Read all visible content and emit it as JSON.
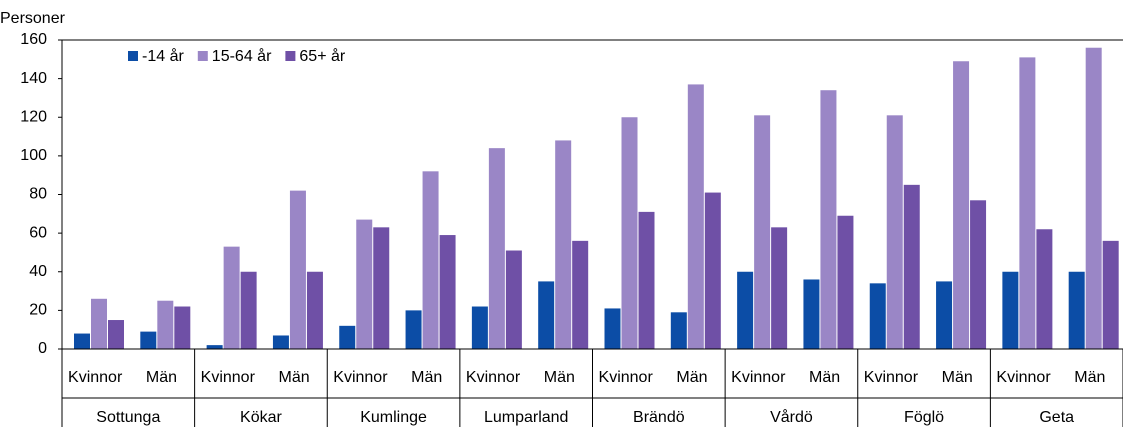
{
  "chart_data": {
    "type": "bar",
    "y_label": "Personer",
    "categories": [
      "Kvinnor",
      "Män",
      "Kvinnor",
      "Män",
      "Kvinnor",
      "Män",
      "Kvinnor",
      "Män",
      "Kvinnor",
      "Män",
      "Kvinnor",
      "Män",
      "Kvinnor",
      "Män",
      "Kvinnor",
      "Män"
    ],
    "groups": [
      "Sottunga",
      "Kökar",
      "Kumlinge",
      "Lumparland",
      "Brändö",
      "Vårdö",
      "Föglö",
      "Geta"
    ],
    "series": [
      {
        "name": "-14 år",
        "color": "#0c4da6",
        "values": [
          8,
          9,
          2,
          7,
          12,
          20,
          22,
          35,
          21,
          19,
          40,
          36,
          34,
          35,
          40,
          40
        ]
      },
      {
        "name": "15-64 år",
        "color": "#9a86c6",
        "values": [
          26,
          25,
          53,
          82,
          67,
          92,
          104,
          108,
          120,
          137,
          121,
          134,
          121,
          149,
          151,
          156
        ]
      },
      {
        "name": "65+ år",
        "color": "#6f50a6",
        "values": [
          15,
          22,
          40,
          40,
          63,
          59,
          51,
          56,
          71,
          81,
          63,
          69,
          85,
          77,
          62,
          56
        ]
      }
    ],
    "ylim": [
      0,
      160
    ],
    "yticks": [
      0,
      20,
      40,
      60,
      80,
      100,
      120,
      140,
      160
    ],
    "grid": false,
    "legend": "top-left"
  }
}
